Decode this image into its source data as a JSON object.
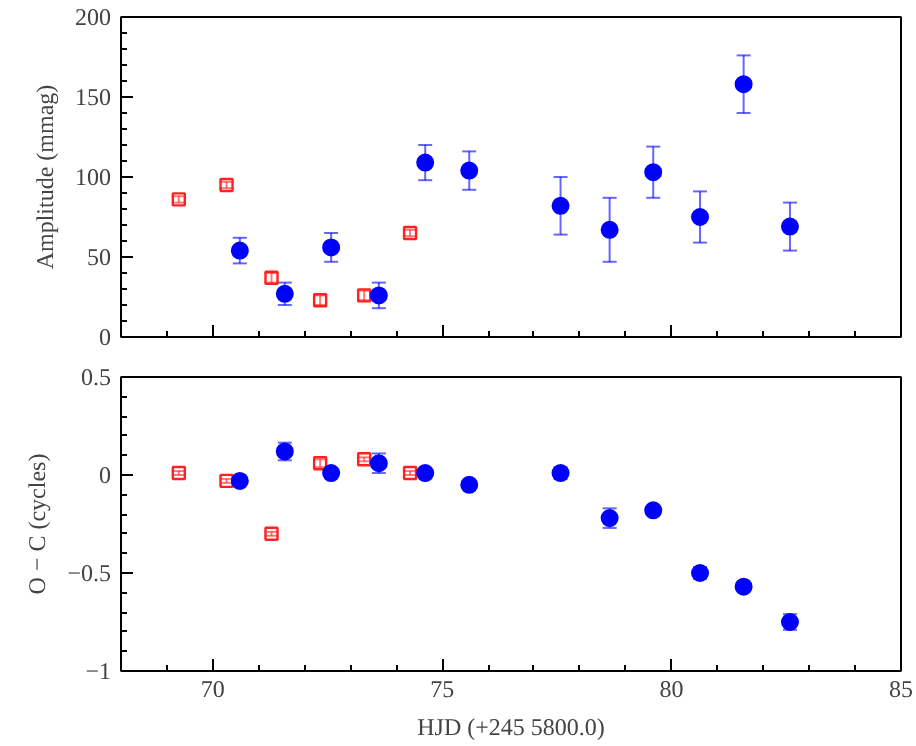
{
  "chart_data": [
    {
      "type": "scatter",
      "ylabel": "Amplitude (mmag)",
      "xlim": [
        68,
        85
      ],
      "xticks": [
        70,
        75,
        80,
        85
      ],
      "ylim": [
        0,
        200
      ],
      "yticks": [
        0,
        50,
        100,
        150,
        200
      ],
      "tick_labels": "y",
      "grid": false,
      "series": [
        {
          "color": "#ff2020",
          "marker": "square",
          "x": [
            69.26,
            70.3,
            71.28,
            72.34,
            73.3,
            74.3
          ],
          "values": [
            86,
            95,
            37,
            23,
            26,
            65
          ],
          "errors": [
            2,
            2,
            3,
            3,
            3,
            2
          ]
        },
        {
          "color": "#0000ff",
          "marker": "circle",
          "x": [
            70.59,
            71.57,
            72.58,
            73.62,
            74.63,
            75.59,
            77.58,
            78.65,
            79.6,
            80.62,
            81.57,
            82.58
          ],
          "values": [
            54,
            27,
            56,
            26,
            109,
            104,
            82,
            67,
            103,
            75,
            158,
            69
          ],
          "errors": [
            8,
            7,
            9,
            8,
            11,
            12,
            18,
            20,
            16,
            16,
            18,
            15
          ]
        }
      ]
    },
    {
      "type": "scatter",
      "xlabel": "HJD (+245 5800.0)",
      "ylabel": "O − C (cycles)",
      "xlim": [
        68,
        85
      ],
      "xticks": [
        70,
        75,
        80,
        85
      ],
      "ylim": [
        -1,
        0.5
      ],
      "yticks": [
        {
          "value": -1,
          "label": "−1"
        },
        {
          "value": -0.5,
          "label": "−0.5"
        },
        0,
        0.5
      ],
      "grid": false,
      "series": [
        {
          "color": "#ff2020",
          "marker": "square",
          "x": [
            69.26,
            70.3,
            71.28,
            72.34,
            73.3,
            74.3
          ],
          "values": [
            0.01,
            -0.03,
            -0.3,
            0.06,
            0.08,
            0.01
          ],
          "errors": [
            0.01,
            0.01,
            0.01,
            0.02,
            0.01,
            0.01
          ]
        },
        {
          "color": "#0000ff",
          "marker": "circle",
          "x": [
            70.59,
            71.57,
            72.58,
            73.62,
            74.63,
            75.59,
            77.58,
            78.65,
            79.6,
            80.62,
            81.57,
            82.58
          ],
          "values": [
            -0.03,
            0.12,
            0.01,
            0.06,
            0.01,
            -0.05,
            0.01,
            -0.22,
            -0.18,
            -0.5,
            -0.57,
            -0.75
          ],
          "errors": [
            0.02,
            0.045,
            0.02,
            0.05,
            0.02,
            0.02,
            0.03,
            0.05,
            0.02,
            0.03,
            0.02,
            0.04
          ]
        }
      ]
    }
  ]
}
